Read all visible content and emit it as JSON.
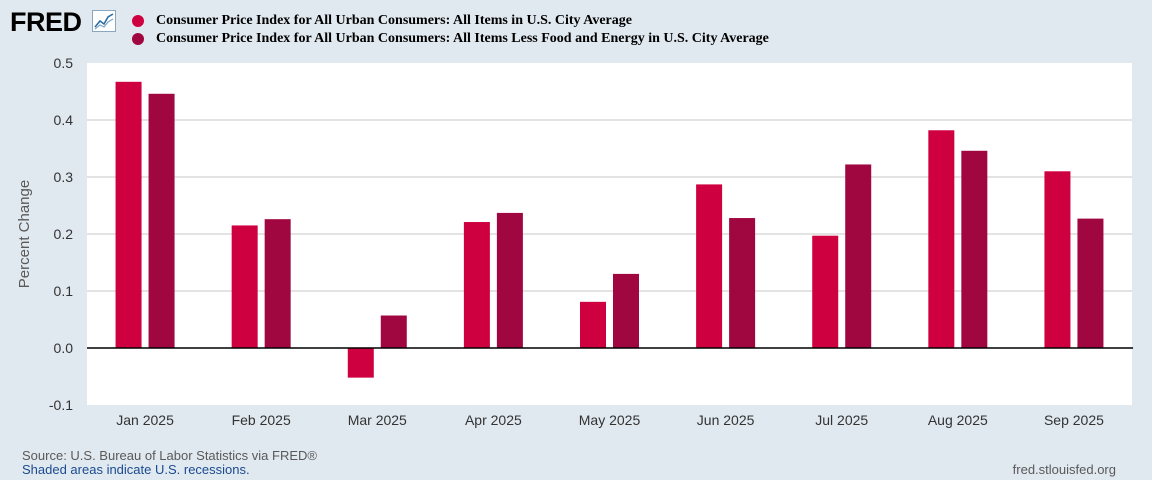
{
  "logo": {
    "text": "FRED"
  },
  "legend": [
    {
      "label": "Consumer Price Index for All Urban Consumers: All Items in U.S. City Average",
      "color": "#cf0040"
    },
    {
      "label": "Consumer Price Index for All Urban Consumers: All Items Less Food and Energy in U.S. City Average",
      "color": "#a0063f"
    }
  ],
  "chart_data": {
    "type": "bar",
    "title": "",
    "xlabel": "",
    "ylabel": "Percent Change",
    "ylim": [
      -0.1,
      0.5
    ],
    "yticks": [
      0.5,
      0.4,
      0.3,
      0.2,
      0.1,
      0.0,
      -0.1
    ],
    "ytick_labels": [
      "0.5",
      "0.4",
      "0.3",
      "0.2",
      "0.1",
      "0.0",
      "-0.1"
    ],
    "grid": true,
    "categories": [
      "Jan 2025",
      "Feb 2025",
      "Mar 2025",
      "Apr 2025",
      "May 2025",
      "Jun 2025",
      "Jul 2025",
      "Aug 2025",
      "Sep 2025"
    ],
    "series": [
      {
        "name": "Consumer Price Index for All Urban Consumers: All Items in U.S. City Average",
        "color": "#cf0040",
        "values": [
          0.467,
          0.215,
          -0.052,
          0.221,
          0.081,
          0.287,
          0.197,
          0.382,
          0.31
        ]
      },
      {
        "name": "Consumer Price Index for All Urban Consumers: All Items Less Food and Energy in U.S. City Average",
        "color": "#a0063f",
        "values": [
          0.446,
          0.226,
          0.057,
          0.237,
          0.13,
          0.228,
          0.322,
          0.346,
          0.227
        ]
      }
    ]
  },
  "footer": {
    "source": "Source: U.S. Bureau of Labor Statistics via FRED®",
    "recessions": "Shaded areas indicate U.S. recessions.",
    "url": "fred.stlouisfed.org"
  }
}
